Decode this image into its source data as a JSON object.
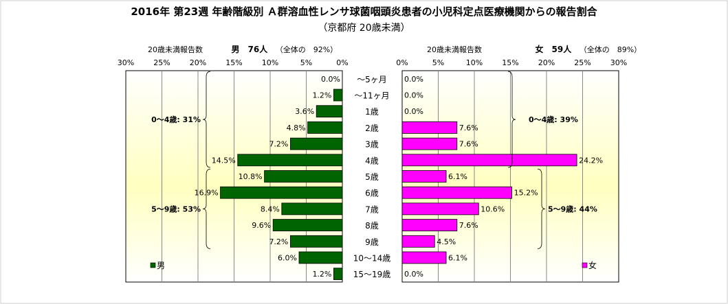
{
  "colors": {
    "male_bar": "#006400",
    "female_bar": "#ff00ff",
    "plot_bg": "#ffffc0",
    "gridline": "#888888"
  },
  "chart_data": {
    "type": "bar",
    "title": "2016年 第23週 年齢階級別 Ａ群溶血性レンサ球菌咽頭炎患者の小児科定点医療機関からの報告割合",
    "subtitle": "（京都府 20歳未満）",
    "categories": [
      "～5ヶ月",
      "～11ヶ月",
      "1歳",
      "2歳",
      "3歳",
      "4歳",
      "5歳",
      "6歳",
      "7歳",
      "8歳",
      "9歳",
      "10～14歳",
      "15～19歳"
    ],
    "xlim": [
      0,
      30
    ],
    "ticks": [
      "0%",
      "5%",
      "10%",
      "15%",
      "20%",
      "25%",
      "30%"
    ],
    "tick_values": [
      0,
      5,
      10,
      15,
      20,
      25,
      30
    ],
    "grid": true,
    "male": {
      "axis_label": "20歳未満報告数",
      "count_label": "男　76人",
      "share_label": "（全体の　92%）",
      "legend": "男",
      "values": [
        0.0,
        1.2,
        3.6,
        4.8,
        7.2,
        14.5,
        10.8,
        16.9,
        8.4,
        9.6,
        7.2,
        6.0,
        1.2
      ],
      "value_labels": [
        "0.0%",
        "1.2%",
        "3.6%",
        "4.8%",
        "7.2%",
        "14.5%",
        "10.8%",
        "16.9%",
        "8.4%",
        "9.6%",
        "7.2%",
        "6.0%",
        "1.2%"
      ],
      "groups": [
        {
          "label": "0～4歳: 31%",
          "from": 0,
          "to": 5
        },
        {
          "label": "5～9歳: 53%",
          "from": 6,
          "to": 10
        }
      ]
    },
    "female": {
      "axis_label": "20歳未満報告数",
      "count_label": "女　59人",
      "share_label": "（全体の　89%）",
      "legend": "女",
      "values": [
        0.0,
        0.0,
        0.0,
        7.6,
        7.6,
        24.2,
        6.1,
        15.2,
        10.6,
        7.6,
        4.5,
        6.1,
        0.0
      ],
      "value_labels": [
        "0.0%",
        "0.0%",
        "0.0%",
        "7.6%",
        "7.6%",
        "24.2%",
        "6.1%",
        "15.2%",
        "10.6%",
        "7.6%",
        "4.5%",
        "6.1%",
        "0.0%"
      ],
      "groups": [
        {
          "label": "0～4歳: 39%",
          "from": 0,
          "to": 5
        },
        {
          "label": "5～9歳: 44%",
          "from": 6,
          "to": 10
        }
      ]
    }
  }
}
